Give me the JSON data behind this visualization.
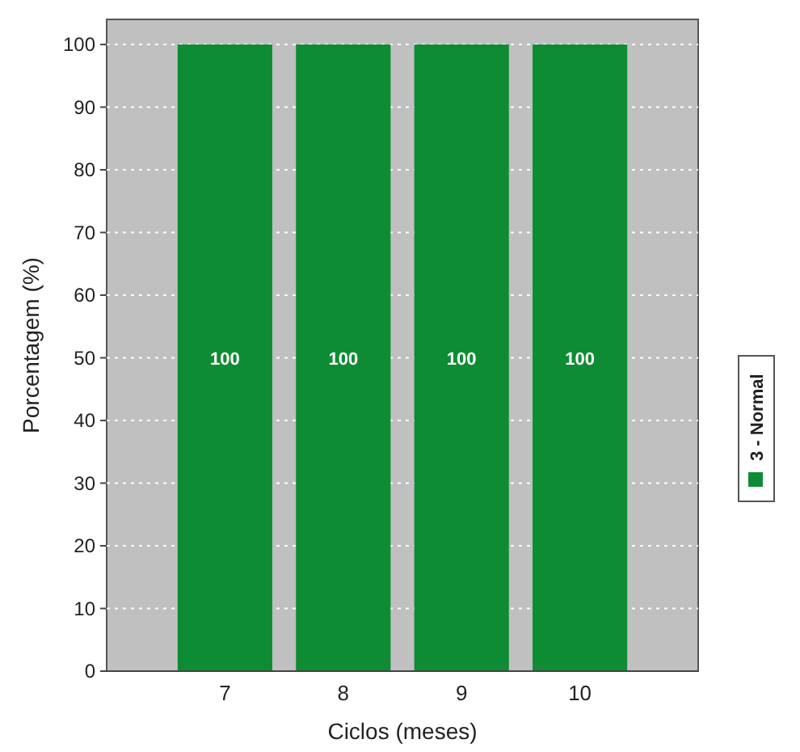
{
  "chart_data": {
    "type": "bar",
    "xlabel": "Ciclos (meses)",
    "ylabel": "Porcentagem (%)",
    "categories": [
      "7",
      "8",
      "9",
      "10"
    ],
    "series": [
      {
        "name": "3 - Normal",
        "color": "#0e8c34",
        "values": [
          100,
          100,
          100,
          100
        ]
      }
    ],
    "ylim": [
      0,
      104
    ],
    "yticks": [
      0,
      10,
      20,
      30,
      40,
      50,
      60,
      70,
      80,
      90,
      100
    ],
    "grid": "y",
    "legend": "right",
    "data_labels": true
  }
}
